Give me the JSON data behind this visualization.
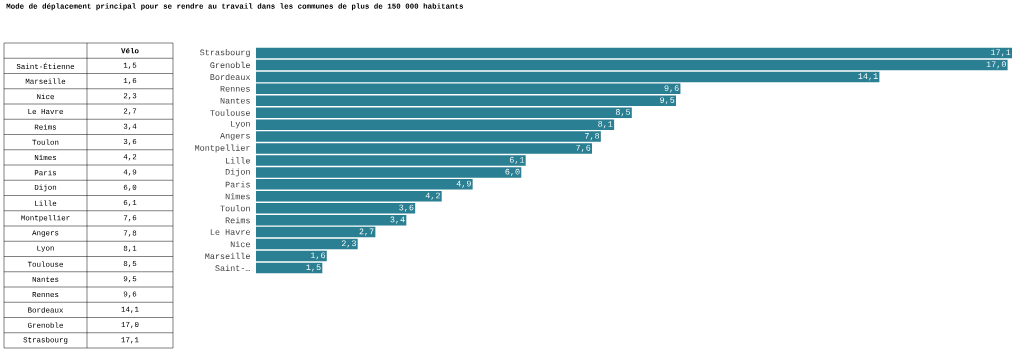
{
  "chart_data": [
    {
      "type": "other",
      "title": "Vélo",
      "categories": [
        "Saint-Étienne",
        "Marseille",
        "Nice",
        "Le Havre",
        "Reims",
        "Toulon",
        "Nîmes",
        "Paris",
        "Dijon",
        "Lille",
        "Montpellier",
        "Angers",
        "Lyon",
        "Toulouse",
        "Nantes",
        "Rennes",
        "Bordeaux",
        "Grenoble",
        "Strasbourg"
      ],
      "value_labels": [
        "1,5",
        "1,6",
        "2,3",
        "2,7",
        "3,4",
        "3,6",
        "4,2",
        "4,9",
        "6,0",
        "6,1",
        "7,6",
        "7,8",
        "8,1",
        "8,5",
        "9,5",
        "9,6",
        "14,1",
        "17,0",
        "17,1"
      ]
    },
    {
      "type": "bar",
      "orientation": "horizontal",
      "title": "Mode de déplacement principal pour se rendre au travail dans les communes de plus de 150 000 habitants",
      "categories": [
        "Strasbourg",
        "Grenoble",
        "Bordeaux",
        "Rennes",
        "Nantes",
        "Toulouse",
        "Lyon",
        "Angers",
        "Montpellier",
        "Lille",
        "Dijon",
        "Paris",
        "Nîmes",
        "Toulon",
        "Reims",
        "Le Havre",
        "Nice",
        "Marseille",
        "Saint-…"
      ],
      "values": [
        17.1,
        17.0,
        14.1,
        9.6,
        9.5,
        8.5,
        8.1,
        7.8,
        7.6,
        6.1,
        6.0,
        4.9,
        4.2,
        3.6,
        3.4,
        2.7,
        2.3,
        1.6,
        1.5
      ],
      "color": "#2b7f92",
      "value_labels": [
        "17,1",
        "17,0",
        "14,1",
        "9,6",
        "9,5",
        "8,5",
        "8,1",
        "7,8",
        "7,6",
        "6,1",
        "6,0",
        "4,9",
        "4,2",
        "3,6",
        "3,4",
        "2,7",
        "2,3",
        "1,6",
        "1,5"
      ]
    }
  ]
}
